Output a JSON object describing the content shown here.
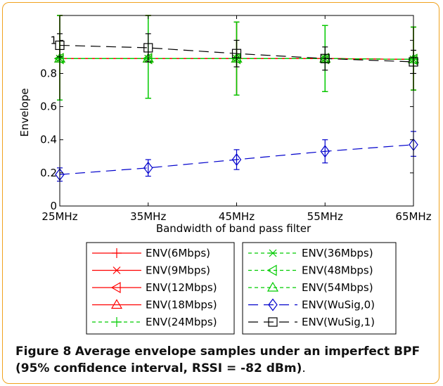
{
  "chart_data": {
    "type": "line",
    "title": "",
    "xlabel": "Bandwidth of band pass filter",
    "ylabel": "Envelope",
    "categories": [
      "25MHz",
      "35MHz",
      "45MHz",
      "55MHz",
      "65MHz"
    ],
    "ylim": [
      0,
      1.15
    ],
    "yticks": [
      0,
      0.2,
      0.4,
      0.6,
      0.8,
      1
    ],
    "grid": false,
    "legend_placement": "bottom",
    "series": [
      {
        "name": "ENV(6Mbps)",
        "color": "#ff0000",
        "dash": "solid",
        "marker": "plus",
        "values": [
          0.89,
          0.89,
          0.89,
          0.89,
          0.885
        ],
        "lower": [
          0.64,
          0.65,
          0.67,
          0.69,
          0.7
        ],
        "upper": [
          1.15,
          1.15,
          1.11,
          1.09,
          1.08
        ]
      },
      {
        "name": "ENV(9Mbps)",
        "color": "#ff0000",
        "dash": "solid",
        "marker": "x",
        "values": [
          0.89,
          0.89,
          0.89,
          0.89,
          0.885
        ],
        "lower": [
          0.64,
          0.65,
          0.67,
          0.69,
          0.7
        ],
        "upper": [
          1.15,
          1.15,
          1.11,
          1.09,
          1.08
        ]
      },
      {
        "name": "ENV(12Mbps)",
        "color": "#ff0000",
        "dash": "solid",
        "marker": "triangle-left",
        "values": [
          0.89,
          0.89,
          0.89,
          0.89,
          0.885
        ],
        "lower": [
          0.64,
          0.65,
          0.67,
          0.69,
          0.7
        ],
        "upper": [
          1.15,
          1.15,
          1.11,
          1.09,
          1.08
        ]
      },
      {
        "name": "ENV(18Mbps)",
        "color": "#ff0000",
        "dash": "solid",
        "marker": "triangle-up",
        "values": [
          0.89,
          0.89,
          0.89,
          0.89,
          0.885
        ],
        "lower": [
          0.64,
          0.65,
          0.67,
          0.69,
          0.7
        ],
        "upper": [
          1.15,
          1.15,
          1.11,
          1.09,
          1.08
        ]
      },
      {
        "name": "ENV(24Mbps)",
        "color": "#00cc00",
        "dash": "dashed",
        "marker": "plus",
        "values": [
          0.89,
          0.89,
          0.89,
          0.89,
          0.885
        ],
        "lower": [
          0.64,
          0.65,
          0.67,
          0.69,
          0.7
        ],
        "upper": [
          1.15,
          1.15,
          1.11,
          1.09,
          1.08
        ]
      },
      {
        "name": "ENV(36Mbps)",
        "color": "#00cc00",
        "dash": "dashed",
        "marker": "star",
        "values": [
          0.89,
          0.89,
          0.89,
          0.89,
          0.885
        ],
        "lower": [
          0.64,
          0.65,
          0.67,
          0.69,
          0.7
        ],
        "upper": [
          1.15,
          1.15,
          1.11,
          1.09,
          1.08
        ]
      },
      {
        "name": "ENV(48Mbps)",
        "color": "#00cc00",
        "dash": "dashed",
        "marker": "triangle-left",
        "values": [
          0.89,
          0.89,
          0.89,
          0.89,
          0.885
        ],
        "lower": [
          0.64,
          0.65,
          0.67,
          0.69,
          0.7
        ],
        "upper": [
          1.15,
          1.15,
          1.11,
          1.09,
          1.08
        ]
      },
      {
        "name": "ENV(54Mbps)",
        "color": "#00cc00",
        "dash": "dashed",
        "marker": "triangle-up",
        "values": [
          0.89,
          0.89,
          0.89,
          0.89,
          0.885
        ],
        "lower": [
          0.64,
          0.65,
          0.67,
          0.69,
          0.7
        ],
        "upper": [
          1.15,
          1.15,
          1.11,
          1.09,
          1.08
        ]
      },
      {
        "name": "ENV(WuSig,0)",
        "color": "#0000cc",
        "dash": "longdash",
        "marker": "diamond",
        "values": [
          0.19,
          0.23,
          0.28,
          0.33,
          0.37
        ],
        "lower": [
          0.15,
          0.18,
          0.22,
          0.26,
          0.3
        ],
        "upper": [
          0.23,
          0.28,
          0.34,
          0.4,
          0.45
        ]
      },
      {
        "name": "ENV(WuSig,1)",
        "color": "#000000",
        "dash": "longdash",
        "marker": "square",
        "values": [
          0.97,
          0.955,
          0.92,
          0.89,
          0.87
        ],
        "lower": [
          0.9,
          0.87,
          0.84,
          0.82,
          0.8
        ],
        "upper": [
          1.04,
          1.04,
          1.0,
          0.96,
          0.94
        ]
      }
    ]
  },
  "caption": {
    "figure_label": "Figure 8",
    "title": "Average envelope samples under an imperfect BPF (95% confidence interval, RSSI = -82 dBm)",
    "tail": "."
  }
}
